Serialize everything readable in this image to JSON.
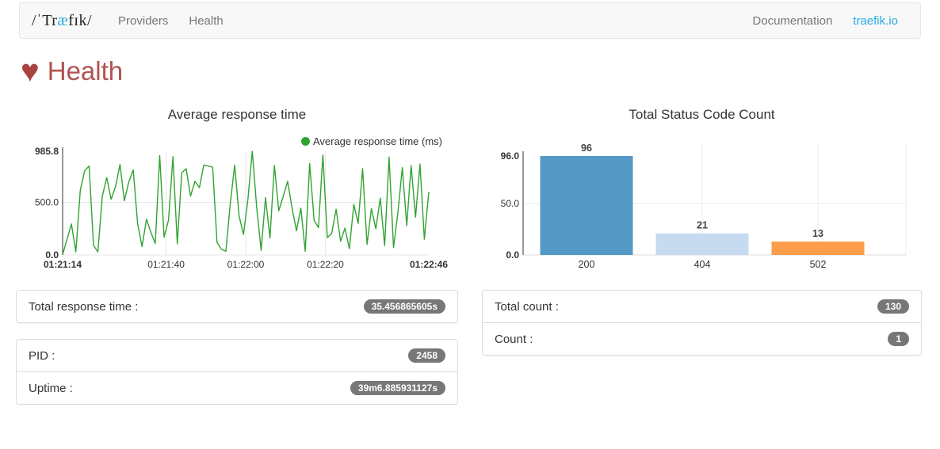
{
  "navbar": {
    "logo": {
      "left": "/ˈTr",
      "mid": "æ",
      "right": "fɪk/"
    },
    "links": [
      {
        "label": "Providers"
      },
      {
        "label": "Health"
      }
    ],
    "right_links": [
      {
        "label": "Documentation"
      },
      {
        "label": "traefik.io"
      }
    ]
  },
  "header": {
    "heart_icon": "♥",
    "title": "Health"
  },
  "colors": {
    "accent_blue": "#29abe2",
    "health_red": "#b15350",
    "heart_red": "#a8433f",
    "badge_gray": "#777777",
    "line_green": "#30a330",
    "bar_blue": "#5599c7",
    "bar_light_blue": "#c6dbef",
    "bar_orange": "#fb9d4b"
  },
  "chart_data": [
    {
      "type": "line",
      "title": "Average response time",
      "legend": [
        "Average response time (ms)"
      ],
      "color": "#30a330",
      "grid": true,
      "legend_position": "top-right",
      "x_ticks": [
        "01:21:14",
        "01:21:40",
        "01:22:00",
        "01:22:20",
        "01:22:46"
      ],
      "x_tick_seconds": [
        0,
        26,
        46,
        66,
        92
      ],
      "x_range_seconds": [
        0,
        92
      ],
      "ylim": [
        0,
        985.8
      ],
      "y_ticks": [
        "0.0",
        "500.0",
        "985.8"
      ],
      "y_tick_values": [
        0,
        500,
        985.8
      ],
      "values": [
        2,
        150,
        295,
        30,
        615,
        800,
        845,
        90,
        30,
        560,
        735,
        530,
        650,
        860,
        515,
        695,
        810,
        300,
        80,
        340,
        215,
        110,
        945,
        170,
        330,
        935,
        105,
        780,
        820,
        560,
        700,
        640,
        855,
        845,
        835,
        120,
        55,
        35,
        485,
        855,
        370,
        195,
        530,
        985,
        450,
        45,
        545,
        160,
        850,
        420,
        555,
        700,
        450,
        230,
        445,
        35,
        870,
        330,
        260,
        950,
        165,
        205,
        435,
        130,
        255,
        60,
        480,
        300,
        820,
        100,
        440,
        250,
        540,
        90,
        930,
        70,
        400,
        830,
        280,
        850,
        360,
        865,
        150,
        600
      ]
    },
    {
      "type": "bar",
      "title": "Total Status Code Count",
      "grid": true,
      "categories": [
        "200",
        "404",
        "502"
      ],
      "values": [
        96,
        21,
        13
      ],
      "colors": [
        "#5599c7",
        "#c6dbef",
        "#fb9d4b"
      ],
      "ylim": [
        0,
        96
      ],
      "y_ticks": [
        "0.0",
        "50.0",
        "96.0"
      ],
      "y_tick_values": [
        0,
        50,
        96
      ]
    }
  ],
  "panels": {
    "total_response_time": {
      "label": "Total response time :",
      "value": "35.456865605s"
    },
    "pid": {
      "label": "PID :",
      "value": "2458"
    },
    "uptime": {
      "label": "Uptime :",
      "value": "39m6.885931127s"
    },
    "total_count": {
      "label": "Total count :",
      "value": "130"
    },
    "count": {
      "label": "Count :",
      "value": "1"
    }
  }
}
